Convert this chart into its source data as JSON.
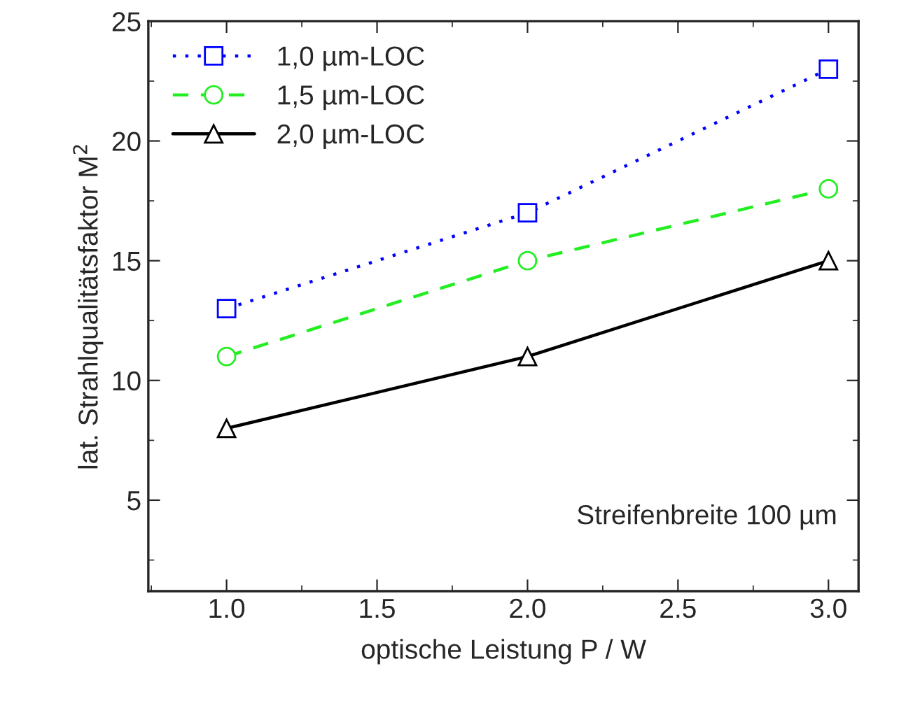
{
  "chart_data": {
    "type": "line",
    "xlabel": "optische Leistung P / W",
    "ylabel": "lat. Strahlqualitätsfaktor M$^{2}$",
    "x": [
      1.0,
      2.0,
      3.0
    ],
    "series": [
      {
        "name": "1,0 µm-LOC",
        "color": "#0000ff",
        "values": [
          13,
          17,
          23
        ],
        "marker": "square",
        "line_style": "dotted"
      },
      {
        "name": "1,5 µm-LOC",
        "color": "#22ee22",
        "values": [
          11,
          15,
          18
        ],
        "marker": "circle",
        "line_style": "dashed"
      },
      {
        "name": "2,0 µm-LOC",
        "color": "#000000",
        "values": [
          8,
          11,
          15
        ],
        "marker": "triangle",
        "line_style": "solid"
      }
    ],
    "xlim": [
      0.74,
      3.1
    ],
    "xticks": [
      {
        "value": 1.0,
        "label": "1.0"
      },
      {
        "value": 1.5,
        "label": "1.5"
      },
      {
        "value": 2.0,
        "label": "2.0"
      },
      {
        "value": 2.5,
        "label": "2.5"
      },
      {
        "value": 3.0,
        "label": "3.0"
      }
    ],
    "ylim": [
      1.2,
      25
    ],
    "yticks": [
      5,
      10,
      15,
      20,
      25
    ],
    "annotations": [
      "Streifenbreite 100 µm"
    ],
    "legend": "top left",
    "grid": false
  }
}
